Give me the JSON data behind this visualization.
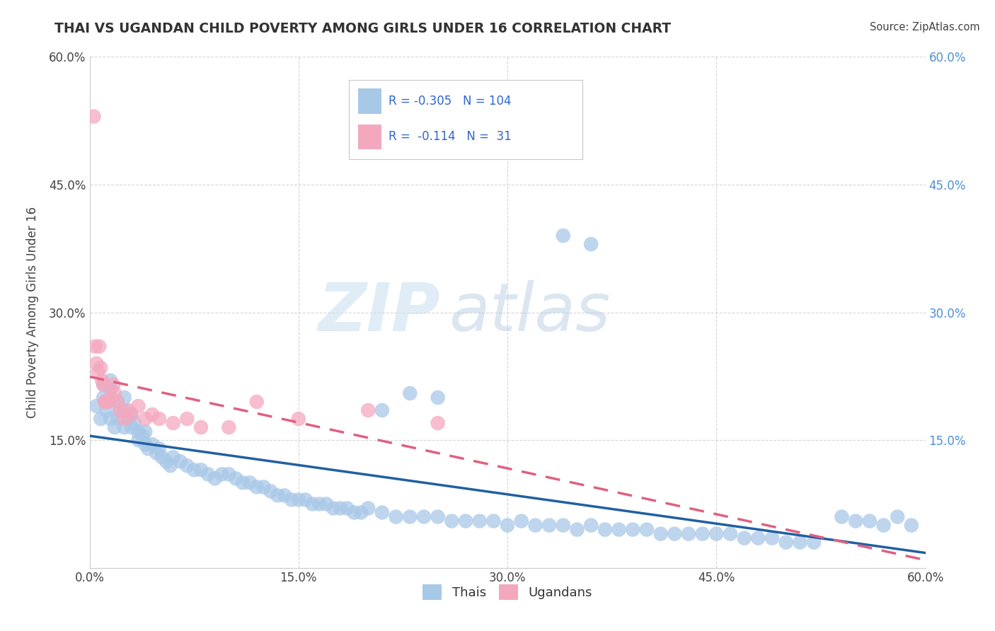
{
  "title": "THAI VS UGANDAN CHILD POVERTY AMONG GIRLS UNDER 16 CORRELATION CHART",
  "source": "Source: ZipAtlas.com",
  "ylabel": "Child Poverty Among Girls Under 16",
  "xlim": [
    0.0,
    0.6
  ],
  "ylim": [
    0.0,
    0.6
  ],
  "xticks": [
    0.0,
    0.15,
    0.3,
    0.45,
    0.6
  ],
  "yticks": [
    0.0,
    0.15,
    0.3,
    0.45,
    0.6
  ],
  "xticklabels": [
    "0.0%",
    "15.0%",
    "30.0%",
    "45.0%",
    "60.0%"
  ],
  "yticklabels": [
    "",
    "15.0%",
    "30.0%",
    "45.0%",
    "60.0%"
  ],
  "right_yticklabels": [
    "15.0%",
    "30.0%",
    "45.0%",
    "60.0%"
  ],
  "right_yticks": [
    0.15,
    0.3,
    0.45,
    0.6
  ],
  "thai_color": "#a8c8e8",
  "ugandan_color": "#f4a8be",
  "thai_line_color": "#2060a0",
  "ugandan_line_color": "#e06080",
  "watermark_zip": "ZIP",
  "watermark_atlas": "atlas",
  "R_thai": -0.305,
  "N_thai": 104,
  "R_ugandan": -0.114,
  "N_ugandan": 31,
  "legend_label_thai": "Thais",
  "legend_label_ugandan": "Ugandans",
  "thai_scatter_x": [
    0.005,
    0.008,
    0.01,
    0.01,
    0.012,
    0.013,
    0.015,
    0.015,
    0.015,
    0.018,
    0.02,
    0.02,
    0.022,
    0.025,
    0.025,
    0.025,
    0.028,
    0.03,
    0.03,
    0.032,
    0.035,
    0.035,
    0.038,
    0.04,
    0.04,
    0.042,
    0.045,
    0.048,
    0.05,
    0.052,
    0.055,
    0.058,
    0.06,
    0.065,
    0.07,
    0.075,
    0.08,
    0.085,
    0.09,
    0.095,
    0.1,
    0.105,
    0.11,
    0.115,
    0.12,
    0.125,
    0.13,
    0.135,
    0.14,
    0.145,
    0.15,
    0.155,
    0.16,
    0.165,
    0.17,
    0.175,
    0.18,
    0.185,
    0.19,
    0.195,
    0.2,
    0.21,
    0.22,
    0.23,
    0.24,
    0.25,
    0.26,
    0.27,
    0.28,
    0.29,
    0.3,
    0.31,
    0.32,
    0.33,
    0.34,
    0.35,
    0.36,
    0.37,
    0.38,
    0.39,
    0.4,
    0.41,
    0.42,
    0.43,
    0.44,
    0.45,
    0.46,
    0.47,
    0.48,
    0.49,
    0.5,
    0.51,
    0.52,
    0.34,
    0.36,
    0.25,
    0.21,
    0.23,
    0.54,
    0.55,
    0.56,
    0.57,
    0.58,
    0.59
  ],
  "thai_scatter_y": [
    0.19,
    0.175,
    0.2,
    0.215,
    0.185,
    0.195,
    0.21,
    0.22,
    0.175,
    0.165,
    0.195,
    0.175,
    0.185,
    0.2,
    0.185,
    0.165,
    0.175,
    0.18,
    0.165,
    0.17,
    0.16,
    0.15,
    0.155,
    0.16,
    0.145,
    0.14,
    0.145,
    0.135,
    0.14,
    0.13,
    0.125,
    0.12,
    0.13,
    0.125,
    0.12,
    0.115,
    0.115,
    0.11,
    0.105,
    0.11,
    0.11,
    0.105,
    0.1,
    0.1,
    0.095,
    0.095,
    0.09,
    0.085,
    0.085,
    0.08,
    0.08,
    0.08,
    0.075,
    0.075,
    0.075,
    0.07,
    0.07,
    0.07,
    0.065,
    0.065,
    0.07,
    0.065,
    0.06,
    0.06,
    0.06,
    0.06,
    0.055,
    0.055,
    0.055,
    0.055,
    0.05,
    0.055,
    0.05,
    0.05,
    0.05,
    0.045,
    0.05,
    0.045,
    0.045,
    0.045,
    0.045,
    0.04,
    0.04,
    0.04,
    0.04,
    0.04,
    0.04,
    0.035,
    0.035,
    0.035,
    0.03,
    0.03,
    0.03,
    0.39,
    0.38,
    0.2,
    0.185,
    0.205,
    0.06,
    0.055,
    0.055,
    0.05,
    0.06,
    0.05
  ],
  "ugandan_scatter_x": [
    0.003,
    0.004,
    0.005,
    0.006,
    0.007,
    0.008,
    0.009,
    0.01,
    0.011,
    0.012,
    0.013,
    0.015,
    0.017,
    0.018,
    0.02,
    0.022,
    0.025,
    0.028,
    0.03,
    0.035,
    0.04,
    0.045,
    0.05,
    0.06,
    0.07,
    0.08,
    0.1,
    0.12,
    0.15,
    0.2,
    0.25
  ],
  "ugandan_scatter_y": [
    0.53,
    0.26,
    0.24,
    0.23,
    0.26,
    0.235,
    0.22,
    0.215,
    0.195,
    0.195,
    0.195,
    0.2,
    0.215,
    0.205,
    0.195,
    0.185,
    0.175,
    0.185,
    0.18,
    0.19,
    0.175,
    0.18,
    0.175,
    0.17,
    0.175,
    0.165,
    0.165,
    0.195,
    0.175,
    0.185,
    0.17
  ],
  "background_color": "#ffffff",
  "grid_color": "#cccccc",
  "title_color": "#333333"
}
